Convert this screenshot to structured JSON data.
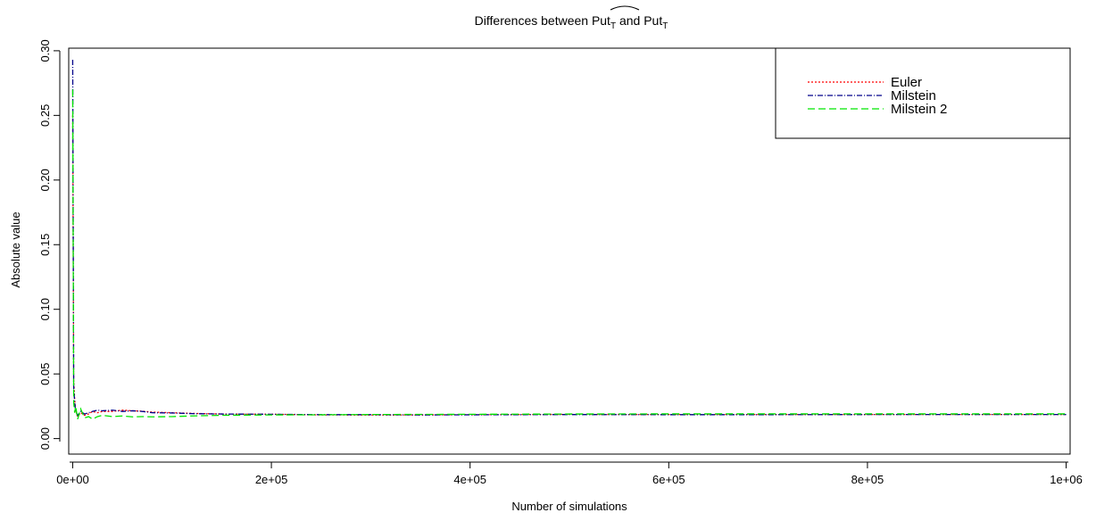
{
  "chart_data": {
    "type": "line",
    "title": {
      "prefix": "Differences between ",
      "term_hat": "Put",
      "term_hat_sub": "T",
      "middle": " and ",
      "term": "Put",
      "term_sub": "T"
    },
    "xlabel": "Number of simulations",
    "ylabel": "Absolute value",
    "xlim": [
      -4000,
      1004000
    ],
    "ylim": [
      -0.012,
      0.302
    ],
    "x_ticks": [
      0,
      200000,
      400000,
      600000,
      800000,
      1000000
    ],
    "x_tick_labels": [
      "0e+00",
      "2e+05",
      "4e+05",
      "6e+05",
      "8e+05",
      "1e+06"
    ],
    "y_ticks": [
      0.0,
      0.05,
      0.1,
      0.15,
      0.2,
      0.25,
      0.3
    ],
    "y_tick_labels": [
      "0.00",
      "0.05",
      "0.10",
      "0.15",
      "0.20",
      "0.25",
      "0.30"
    ],
    "grid": false,
    "legend_position": "top-right",
    "series": [
      {
        "name": "Euler",
        "color": "#ff0000",
        "dash": "dotted",
        "x": [
          0,
          1000,
          2000,
          3000,
          5000,
          8000,
          12000,
          16000,
          20000,
          25000,
          30000,
          40000,
          50000,
          60000,
          70000,
          80000,
          100000,
          120000,
          150000,
          200000,
          250000,
          300000,
          350000,
          400000,
          450000,
          500000,
          600000,
          700000,
          800000,
          900000,
          1000000
        ],
        "y": [
          0.25,
          0.045,
          0.03,
          0.022,
          0.017,
          0.02,
          0.018,
          0.019,
          0.021,
          0.02,
          0.021,
          0.021,
          0.022,
          0.0215,
          0.0212,
          0.0205,
          0.02,
          0.0195,
          0.019,
          0.0188,
          0.0183,
          0.0182,
          0.0183,
          0.0185,
          0.0186,
          0.0187,
          0.0186,
          0.0186,
          0.0186,
          0.0186,
          0.0186
        ]
      },
      {
        "name": "Milstein",
        "color": "#00008b",
        "dash": "dotdash",
        "x": [
          0,
          1000,
          2000,
          3000,
          5000,
          8000,
          12000,
          16000,
          20000,
          25000,
          30000,
          40000,
          50000,
          60000,
          70000,
          80000,
          100000,
          120000,
          150000,
          200000,
          250000,
          300000,
          350000,
          400000,
          450000,
          500000,
          600000,
          700000,
          800000,
          900000,
          1000000
        ],
        "y": [
          0.293,
          0.04,
          0.028,
          0.021,
          0.018,
          0.021,
          0.019,
          0.02,
          0.021,
          0.022,
          0.0215,
          0.022,
          0.021,
          0.0215,
          0.021,
          0.02,
          0.0198,
          0.0193,
          0.019,
          0.0188,
          0.0185,
          0.0185,
          0.0183,
          0.0184,
          0.0185,
          0.0186,
          0.0185,
          0.0185,
          0.0186,
          0.0186,
          0.0186
        ]
      },
      {
        "name": "Milstein 2",
        "color": "#00e600",
        "dash": "dashed",
        "x": [
          0,
          1000,
          2000,
          3000,
          5000,
          8000,
          12000,
          16000,
          20000,
          25000,
          30000,
          40000,
          50000,
          60000,
          70000,
          80000,
          100000,
          120000,
          150000,
          200000,
          250000,
          300000,
          350000,
          400000,
          450000,
          500000,
          600000,
          700000,
          800000,
          900000,
          1000000
        ],
        "y": [
          0.27,
          0.028,
          0.02,
          0.025,
          0.015,
          0.023,
          0.016,
          0.017,
          0.015,
          0.017,
          0.018,
          0.017,
          0.0175,
          0.0168,
          0.017,
          0.0168,
          0.017,
          0.0175,
          0.018,
          0.0183,
          0.0184,
          0.0186,
          0.0187,
          0.0188,
          0.0189,
          0.019,
          0.0191,
          0.0191,
          0.0191,
          0.0191,
          0.0191
        ]
      }
    ]
  }
}
